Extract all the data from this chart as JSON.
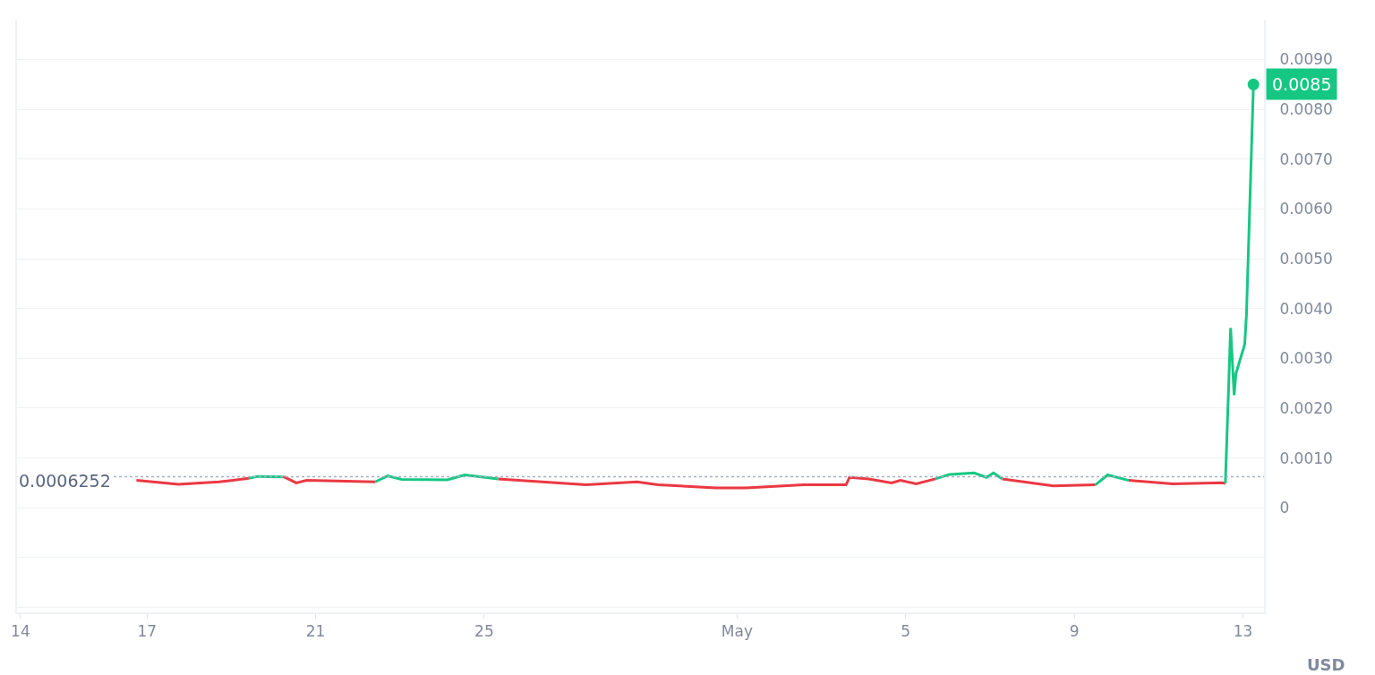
{
  "chart_data": {
    "type": "line",
    "x": [
      "--04-16T18:00",
      "--04-17T18:00",
      "--04-18T17:00",
      "--04-19T10:00",
      "--04-19T15:00",
      "--04-20T06:00",
      "--04-20T13:00",
      "--04-20T19:00",
      "--04-22T10:00",
      "--04-22T17:00",
      "--04-23T01:00",
      "--04-24T03:00",
      "--04-24T13:00",
      "--04-25T08:00",
      "--04-27T10:00",
      "--04-28T15:00",
      "--04-29T03:00",
      "--04-30T12:00",
      "--05-01T05:00",
      "--05-02T14:00",
      "--05-03T14:00",
      "--05-03T16:00",
      "--05-04T03:00",
      "--05-04T16:00",
      "--05-04T21:00",
      "--05-05T06:00",
      "--05-05T17:00",
      "--05-06T01:00",
      "--05-06T15:00",
      "--05-06T22:00",
      "--05-07T02:00",
      "--05-07T07:00",
      "--05-08T12:00",
      "--05-09T12:00",
      "--05-09T19:00",
      "--05-10T07:00",
      "--05-11T08:00",
      "--05-12T12:00",
      "--05-12T14:00",
      "--05-12T17:00",
      "--05-12T19:00",
      "--05-12T20:00",
      "--05-13T01:00",
      "--05-13T02:00",
      "--05-13T06:00"
    ],
    "series": [
      {
        "color": "#ea3943",
        "values": [
          0.00055,
          0.00047,
          0.00052,
          0.00059,
          null,
          0.00062,
          0.0005,
          0.00055,
          0.00052,
          null,
          null,
          null,
          null,
          0.00058,
          0.00046,
          0.00052,
          0.00046,
          0.0004,
          0.0004,
          0.00046,
          0.00046,
          0.00061,
          0.00058,
          0.0005,
          0.00055,
          0.00048,
          0.00058,
          null,
          null,
          null,
          null,
          0.00058,
          0.00044,
          0.00046,
          null,
          0.00055,
          0.00048,
          0.0005,
          0.00049,
          null,
          null,
          null,
          null,
          null,
          null
        ]
      },
      {
        "color": "#16c784",
        "values": [
          null,
          null,
          null,
          0.00059,
          0.00063,
          0.00062,
          null,
          null,
          0.00052,
          0.00064,
          0.00057,
          0.00056,
          0.00066,
          0.00058,
          null,
          null,
          null,
          null,
          null,
          null,
          null,
          null,
          null,
          null,
          null,
          null,
          0.00058,
          0.00067,
          0.0007,
          0.00061,
          0.0007,
          0.00058,
          null,
          0.00046,
          0.00066,
          0.00055,
          null,
          null,
          0.00049,
          0.00361,
          0.00226,
          0.00269,
          0.00328,
          0.00386,
          0.0085
        ]
      }
    ],
    "xlim": [
      "--04-13T22:00",
      "--05-13T12:00"
    ],
    "xticks": [
      {
        "value": "--04-14",
        "label": "14"
      },
      {
        "value": "--04-17",
        "label": "17"
      },
      {
        "value": "--04-21",
        "label": "21"
      },
      {
        "value": "--04-25",
        "label": "25"
      },
      {
        "value": "--05-01",
        "label": "May"
      },
      {
        "value": "--05-05",
        "label": "5"
      },
      {
        "value": "--05-09",
        "label": "9"
      },
      {
        "value": "--05-13",
        "label": "13"
      }
    ],
    "ylim": [
      -0.0021,
      0.0098
    ],
    "yticks": [
      {
        "value": -0.002,
        "label": null
      },
      {
        "value": -0.001,
        "label": null
      },
      0,
      {
        "value": 0.001,
        "label": "0.0010"
      },
      {
        "value": 0.002,
        "label": "0.0020"
      },
      {
        "value": 0.003,
        "label": "0.0030"
      },
      {
        "value": 0.004,
        "label": "0.0040"
      },
      {
        "value": 0.005,
        "label": "0.0050"
      },
      {
        "value": 0.006,
        "label": "0.0060"
      },
      {
        "value": 0.007,
        "label": "0.0070"
      },
      {
        "value": 0.008,
        "label": "0.0080"
      },
      {
        "value": 0.009,
        "label": "0.0090"
      }
    ],
    "ref_lines": [
      {
        "axis": "y",
        "value": 0.0006252,
        "label": "0.0006252",
        "color": "#a6b0c3",
        "line_style": "dotted"
      }
    ],
    "annotations": [
      {
        "text": "0.0085",
        "x": "--05-13T06:00",
        "y": 0.0085
      },
      "USD"
    ],
    "grid": "y",
    "marker": "none",
    "line_style": "solid"
  }
}
